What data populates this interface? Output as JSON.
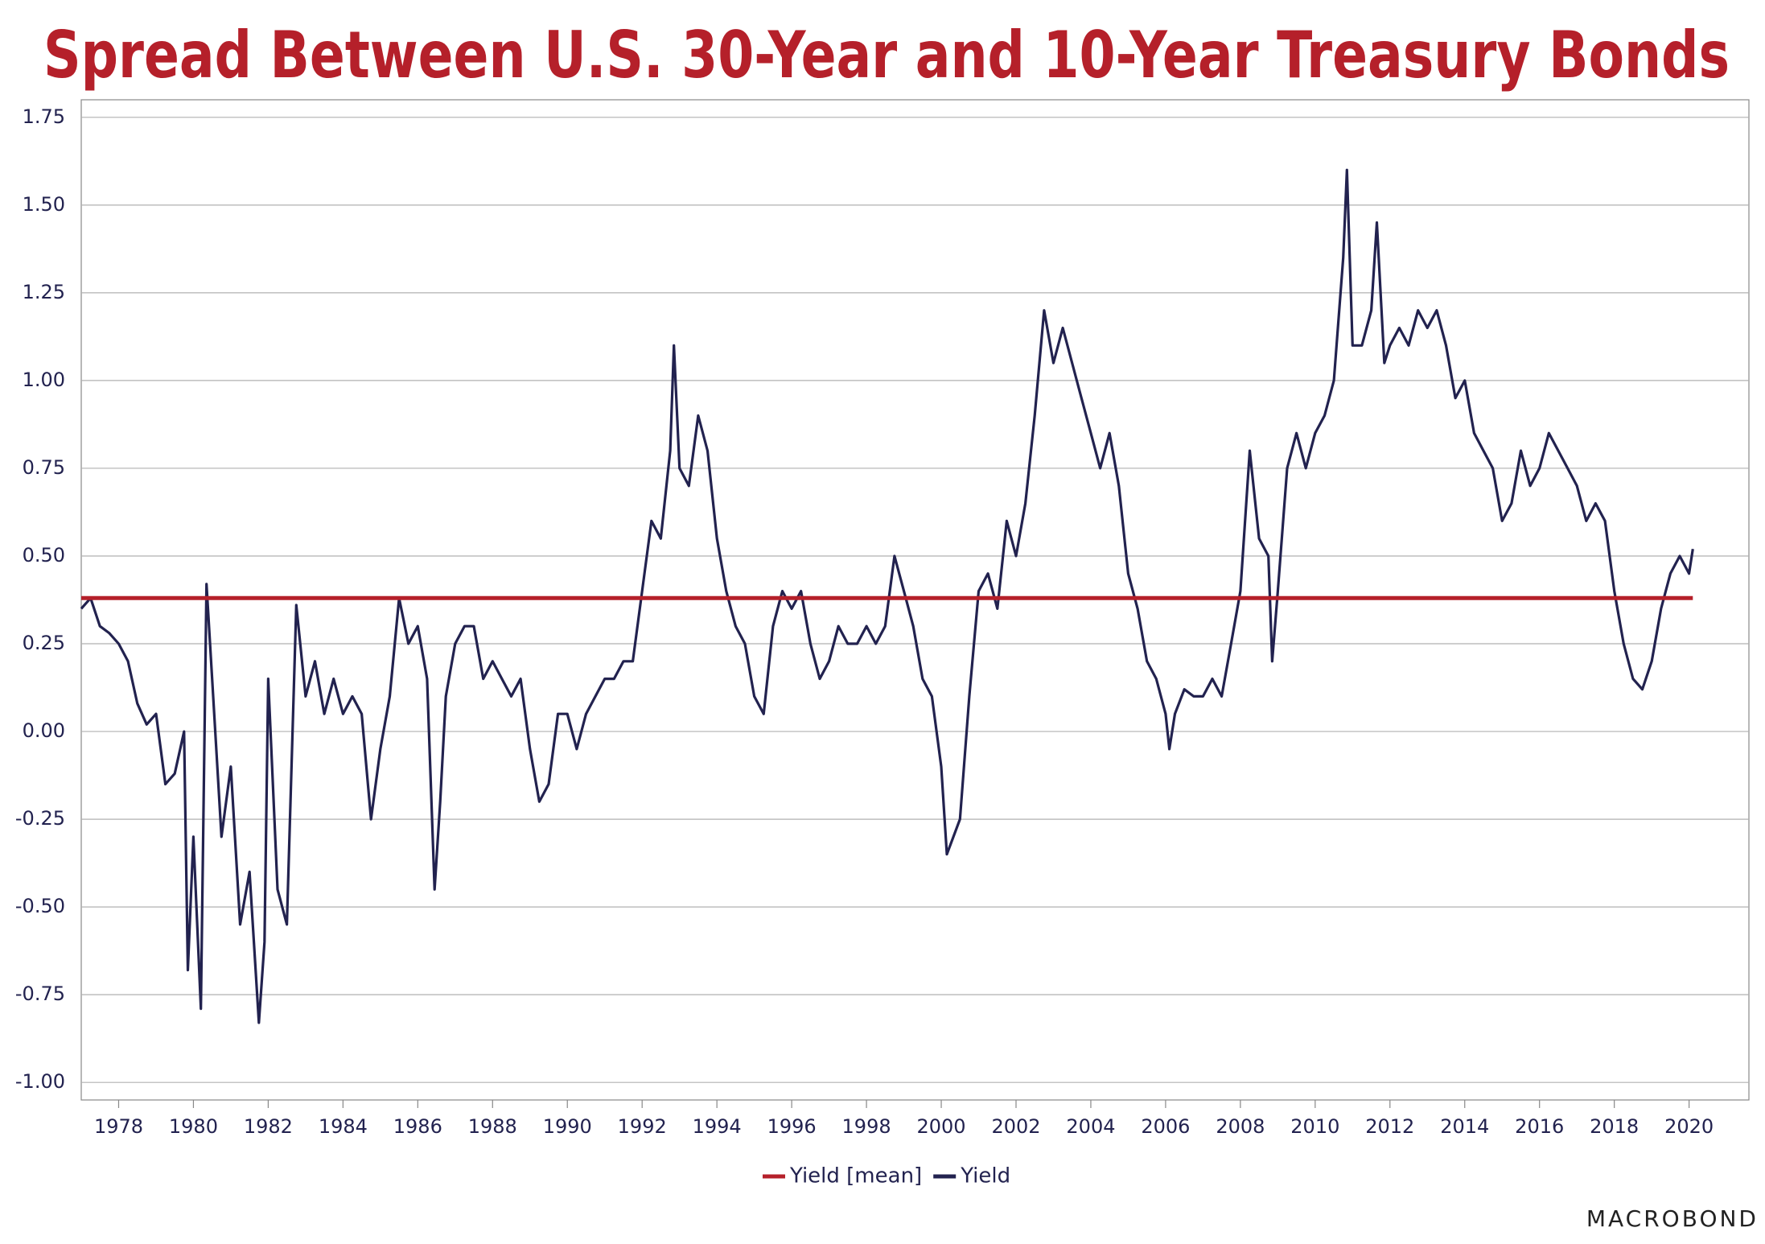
{
  "chart_data": {
    "type": "line",
    "title": "Spread Between U.S. 30-Year and 10-Year Treasury Bonds",
    "credit": "MACROBOND",
    "xlim": [
      1977,
      2021.6
    ],
    "xticks": [
      1978,
      1980,
      1982,
      1984,
      1986,
      1988,
      1990,
      1992,
      1994,
      1996,
      1998,
      2000,
      2002,
      2004,
      2006,
      2008,
      2010,
      2012,
      2014,
      2016,
      2018,
      2020
    ],
    "ylim": [
      -1.05,
      1.8
    ],
    "yticks": [
      1.75,
      {
        "value": 1.5,
        "label": "1.50"
      },
      1.25,
      {
        "value": 1,
        "label": "1.00"
      },
      0.75,
      {
        "value": 0.5,
        "label": "0.50"
      },
      0.25,
      {
        "value": 0,
        "label": "0.00"
      },
      -0.25,
      {
        "value": -0.5,
        "label": "-0.50"
      },
      -0.75,
      {
        "value": -1,
        "label": "-1.00"
      }
    ],
    "grid": true,
    "legend": "bottom",
    "series": [
      {
        "name": "Yield [mean]",
        "color": "#b5202a",
        "x": [
          1977,
          2020.1
        ],
        "values": [
          0.38,
          0.38
        ]
      },
      {
        "name": "Yield",
        "color": "#22224f",
        "x": [
          1977,
          1977.25,
          1977.5,
          1977.75,
          1978,
          1978.25,
          1978.5,
          1978.75,
          1979,
          1979.25,
          1979.5,
          1979.75,
          1979.85,
          1980,
          1980.2,
          1980.35,
          1980.5,
          1980.75,
          1981,
          1981.25,
          1981.5,
          1981.75,
          1981.9,
          1982,
          1982.25,
          1982.5,
          1982.75,
          1983,
          1983.25,
          1983.5,
          1983.75,
          1984,
          1984.25,
          1984.5,
          1984.75,
          1985,
          1985.25,
          1985.5,
          1985.75,
          1986,
          1986.25,
          1986.45,
          1986.6,
          1986.75,
          1987,
          1987.25,
          1987.5,
          1987.75,
          1988,
          1988.25,
          1988.5,
          1988.75,
          1989,
          1989.25,
          1989.5,
          1989.75,
          1990,
          1990.25,
          1990.5,
          1990.75,
          1991,
          1991.25,
          1991.5,
          1991.75,
          1992,
          1992.25,
          1992.5,
          1992.75,
          1992.85,
          1993,
          1993.25,
          1993.5,
          1993.75,
          1994,
          1994.25,
          1994.5,
          1994.75,
          1995,
          1995.25,
          1995.5,
          1995.75,
          1996,
          1996.25,
          1996.5,
          1996.75,
          1997,
          1997.25,
          1997.5,
          1997.75,
          1998,
          1998.25,
          1998.5,
          1998.75,
          1999,
          1999.25,
          1999.5,
          1999.75,
          2000,
          2000.15,
          2000.5,
          2000.75,
          2001,
          2001.25,
          2001.5,
          2001.75,
          2002,
          2002.25,
          2002.5,
          2002.75,
          2003,
          2003.25,
          2003.5,
          2003.75,
          2004,
          2004.25,
          2004.5,
          2004.75,
          2005,
          2005.25,
          2005.5,
          2005.75,
          2006,
          2006.1,
          2006.25,
          2006.5,
          2006.75,
          2007,
          2007.25,
          2007.5,
          2007.75,
          2008,
          2008.25,
          2008.5,
          2008.75,
          2008.85,
          2009,
          2009.25,
          2009.5,
          2009.75,
          2010,
          2010.25,
          2010.5,
          2010.75,
          2010.85,
          2011,
          2011.25,
          2011.5,
          2011.65,
          2011.85,
          2012,
          2012.25,
          2012.5,
          2012.75,
          2013,
          2013.25,
          2013.5,
          2013.75,
          2014,
          2014.25,
          2014.5,
          2014.75,
          2015,
          2015.25,
          2015.5,
          2015.75,
          2016,
          2016.25,
          2016.5,
          2016.75,
          2017,
          2017.25,
          2017.5,
          2017.75,
          2018,
          2018.25,
          2018.5,
          2018.75,
          2019,
          2019.25,
          2019.5,
          2019.75,
          2020,
          2020.1
        ],
        "values": [
          0.35,
          0.38,
          0.3,
          0.28,
          0.25,
          0.2,
          0.08,
          0.02,
          0.05,
          -0.15,
          -0.12,
          0.0,
          -0.68,
          -0.3,
          -0.79,
          0.42,
          0.15,
          -0.3,
          -0.1,
          -0.55,
          -0.4,
          -0.83,
          -0.6,
          0.15,
          -0.45,
          -0.55,
          0.36,
          0.1,
          0.2,
          0.05,
          0.15,
          0.05,
          0.1,
          0.05,
          -0.25,
          -0.05,
          0.1,
          0.38,
          0.25,
          0.3,
          0.15,
          -0.45,
          -0.2,
          0.1,
          0.25,
          0.3,
          0.3,
          0.15,
          0.2,
          0.15,
          0.1,
          0.15,
          -0.05,
          -0.2,
          -0.15,
          0.05,
          0.05,
          -0.05,
          0.05,
          0.1,
          0.15,
          0.15,
          0.2,
          0.2,
          0.4,
          0.6,
          0.55,
          0.8,
          1.1,
          0.75,
          0.7,
          0.9,
          0.8,
          0.55,
          0.4,
          0.3,
          0.25,
          0.1,
          0.05,
          0.3,
          0.4,
          0.35,
          0.4,
          0.25,
          0.15,
          0.2,
          0.3,
          0.25,
          0.25,
          0.3,
          0.25,
          0.3,
          0.5,
          0.4,
          0.3,
          0.15,
          0.1,
          -0.1,
          -0.35,
          -0.25,
          0.1,
          0.4,
          0.45,
          0.35,
          0.6,
          0.5,
          0.65,
          0.9,
          1.2,
          1.05,
          1.15,
          1.05,
          0.95,
          0.85,
          0.75,
          0.85,
          0.7,
          0.45,
          0.35,
          0.2,
          0.15,
          0.05,
          -0.05,
          0.05,
          0.12,
          0.1,
          0.1,
          0.15,
          0.1,
          0.25,
          0.4,
          0.8,
          0.55,
          0.5,
          0.2,
          0.4,
          0.75,
          0.85,
          0.75,
          0.85,
          0.9,
          1.0,
          1.35,
          1.6,
          1.1,
          1.1,
          1.2,
          1.45,
          1.05,
          1.1,
          1.15,
          1.1,
          1.2,
          1.15,
          1.2,
          1.1,
          0.95,
          1.0,
          0.85,
          0.8,
          0.75,
          0.6,
          0.65,
          0.8,
          0.7,
          0.75,
          0.85,
          0.8,
          0.75,
          0.7,
          0.6,
          0.65,
          0.6,
          0.4,
          0.25,
          0.15,
          0.12,
          0.2,
          0.35,
          0.45,
          0.5,
          0.45,
          0.52
        ]
      }
    ]
  }
}
